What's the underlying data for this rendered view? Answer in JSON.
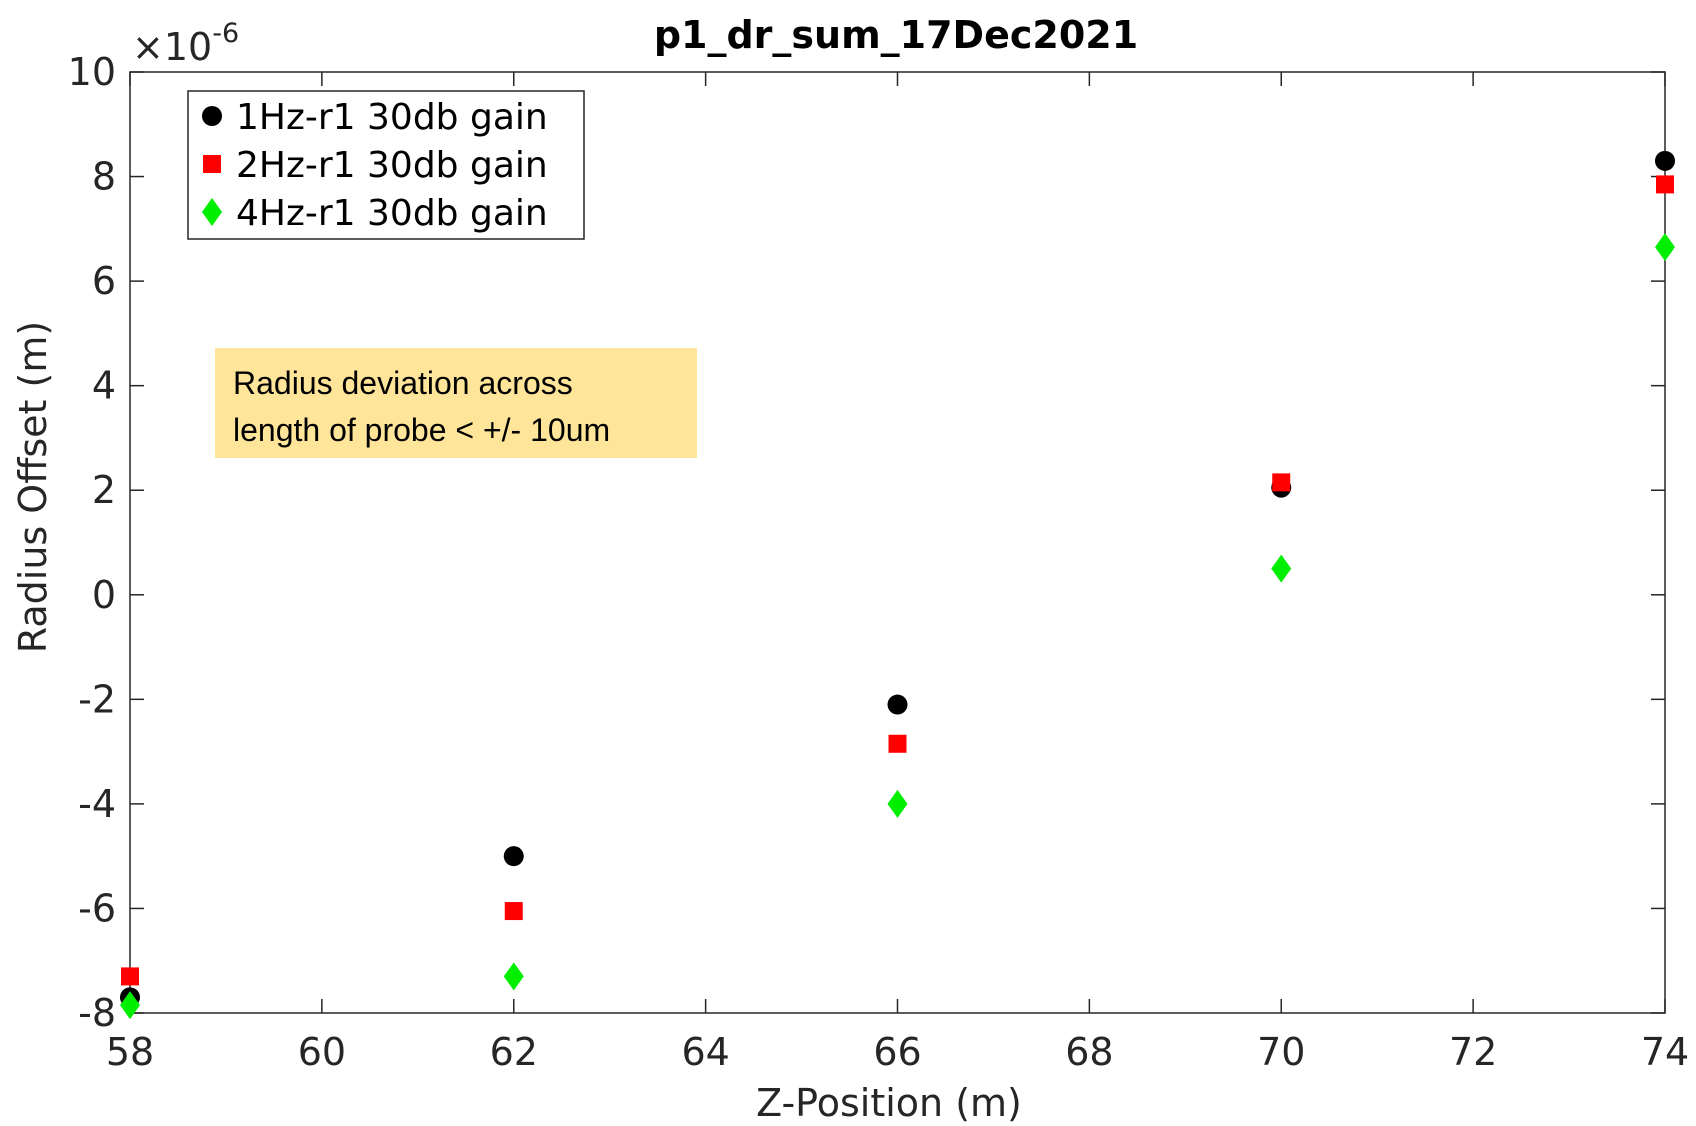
{
  "chart_data": {
    "type": "scatter",
    "title": "p1_dr_sum_17Dec2021",
    "xlabel": "Z-Position (m)",
    "ylabel": "Radius Offset (m)",
    "y_exponent_label": "×10",
    "y_exponent_power": "-6",
    "xlim": [
      58,
      74
    ],
    "ylim": [
      -8,
      10
    ],
    "x_ticks": [
      58,
      60,
      62,
      64,
      66,
      68,
      70,
      72,
      74
    ],
    "y_ticks": [
      -8,
      -6,
      -4,
      -2,
      0,
      2,
      4,
      6,
      8,
      10
    ],
    "x_tick_labels": [
      "58",
      "60",
      "62",
      "64",
      "66",
      "68",
      "70",
      "72",
      "74"
    ],
    "y_tick_labels": [
      "-8",
      "-6",
      "-4",
      "-2",
      "0",
      "2",
      "4",
      "6",
      "8",
      "10"
    ],
    "legend_position": "top-left",
    "grid": false,
    "series": [
      {
        "name": "1Hz-r1 30db gain",
        "marker": "circle",
        "color": "#000000",
        "x": [
          58,
          62,
          66,
          70,
          74
        ],
        "y": [
          -7.7,
          -5.0,
          -2.1,
          2.05,
          8.3
        ]
      },
      {
        "name": "2Hz-r1 30db gain",
        "marker": "square",
        "color": "#ff0000",
        "x": [
          58,
          62,
          66,
          70,
          74
        ],
        "y": [
          -7.3,
          -6.05,
          -2.85,
          2.15,
          7.85
        ]
      },
      {
        "name": "4Hz-r1 30db gain",
        "marker": "diamond",
        "color": "#00ee00",
        "x": [
          58,
          62,
          66,
          70,
          74
        ],
        "y": [
          -7.85,
          -7.3,
          -4.0,
          0.5,
          6.65
        ]
      }
    ]
  },
  "annotation": {
    "line1": "Radius deviation across",
    "line2": "length of probe < +/- 10um"
  }
}
